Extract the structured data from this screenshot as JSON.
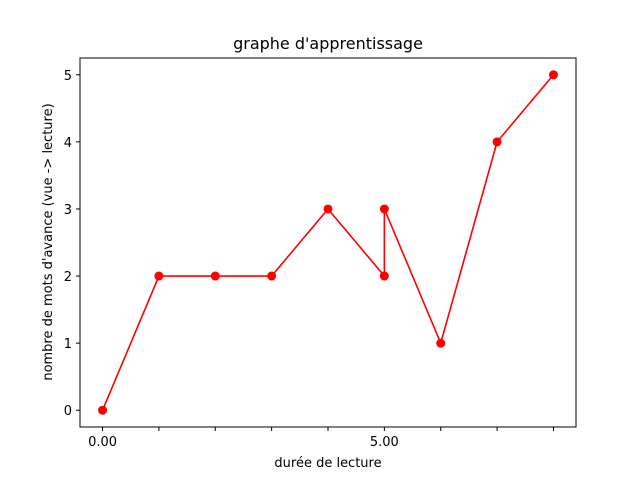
{
  "chart_data": {
    "type": "line",
    "title": "graphe d'apprentissage",
    "xlabel": "durée de lecture",
    "ylabel": "nombre de mots d'avance (vue -> lecture)",
    "xlim": [
      -0.4,
      8.4
    ],
    "ylim": [
      -0.25,
      5.25
    ],
    "x_ticks": [
      0,
      1,
      2,
      3,
      4,
      5,
      6,
      7,
      8
    ],
    "x_tick_labels": [
      "0.00",
      "",
      "",
      "",
      "",
      "5.00",
      "",
      "",
      ""
    ],
    "y_ticks": [
      0,
      1,
      2,
      3,
      4,
      5
    ],
    "y_tick_labels": [
      "0",
      "1",
      "2",
      "3",
      "4",
      "5"
    ],
    "grid": false,
    "series": [
      {
        "color": "#ff0000",
        "marker": "circle",
        "points": [
          {
            "x": 0,
            "y": 0
          },
          {
            "x": 1,
            "y": 2
          },
          {
            "x": 2,
            "y": 2
          },
          {
            "x": 3,
            "y": 2
          },
          {
            "x": 4,
            "y": 3
          },
          {
            "x": 5,
            "y": 2
          },
          {
            "x": 5,
            "y": 3
          },
          {
            "x": 6,
            "y": 1
          },
          {
            "x": 7,
            "y": 4
          },
          {
            "x": 8,
            "y": 5
          }
        ]
      }
    ]
  }
}
